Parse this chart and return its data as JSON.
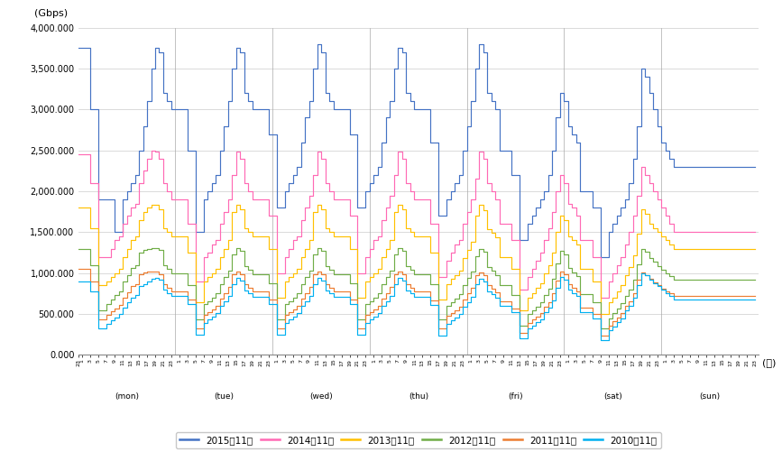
{
  "ylabel": "(Gbps)",
  "xlabel_right": "(時)",
  "ylim": [
    0,
    4000000
  ],
  "yticks": [
    0,
    500000,
    1000000,
    1500000,
    2000000,
    2500000,
    3000000,
    3500000,
    4000000
  ],
  "ytick_labels": [
    "0.000",
    "500.000",
    "1,000.000",
    "1,500.000",
    "2,000.000",
    "2,500.000",
    "3,000.000",
    "3,500.000",
    "4,000.000"
  ],
  "days_labels": [
    "(mon)",
    "(tue)",
    "(wed)",
    "(thu)",
    "(fri)",
    "(sat)",
    "(sun)"
  ],
  "series": [
    {
      "name": "2015年11月",
      "color": "#4472C4",
      "hourly": [
        3750,
        3750,
        3750,
        3000,
        3000,
        1900,
        1900,
        1900,
        1900,
        1500,
        1500,
        1900,
        2000,
        2100,
        2200,
        2500,
        2800,
        3100,
        3500,
        3750,
        3700,
        3200,
        3100,
        3000,
        3000,
        3000,
        3000,
        2500,
        2500,
        1500,
        1500,
        1900,
        2000,
        2100,
        2200,
        2500,
        2800,
        3100,
        3500,
        3750,
        3700,
        3200,
        3100,
        3000,
        3000,
        3000,
        3000,
        2700,
        2700,
        1800,
        1800,
        2000,
        2100,
        2200,
        2300,
        2600,
        2900,
        3100,
        3500,
        3800,
        3700,
        3200,
        3100,
        3000,
        3000,
        3000,
        3000,
        2700,
        2700,
        1800,
        1800,
        2000,
        2100,
        2200,
        2300,
        2600,
        2900,
        3100,
        3500,
        3750,
        3700,
        3200,
        3100,
        3000,
        3000,
        3000,
        3000,
        2600,
        2600,
        1700,
        1700,
        1900,
        2000,
        2100,
        2200,
        2500,
        2800,
        3100,
        3500,
        3800,
        3700,
        3200,
        3100,
        3000,
        2500,
        2500,
        2500,
        2200,
        2200,
        1400,
        1400,
        1600,
        1700,
        1800,
        1900,
        2000,
        2200,
        2500,
        2900,
        3200,
        3100,
        2800,
        2700,
        2600,
        2000,
        2000,
        2000,
        1800,
        1800,
        1200,
        1200,
        1500,
        1600,
        1700,
        1800,
        1900,
        2100,
        2400,
        2800,
        3500,
        3400,
        3200,
        3000,
        2800,
        2600,
        2500,
        2400,
        2300
      ]
    },
    {
      "name": "2014年11月",
      "color": "#FF69B4",
      "hourly": [
        2450,
        2450,
        2450,
        2100,
        2100,
        1200,
        1200,
        1200,
        1300,
        1400,
        1450,
        1600,
        1700,
        1800,
        1850,
        2100,
        2250,
        2400,
        2500,
        2490,
        2400,
        2100,
        2000,
        1900,
        1900,
        1900,
        1900,
        1600,
        1600,
        900,
        900,
        1200,
        1250,
        1350,
        1400,
        1600,
        1750,
        1900,
        2200,
        2490,
        2400,
        2100,
        2000,
        1900,
        1900,
        1900,
        1900,
        1700,
        1700,
        1000,
        1000,
        1200,
        1300,
        1400,
        1450,
        1650,
        1800,
        1950,
        2200,
        2490,
        2400,
        2100,
        2000,
        1900,
        1900,
        1900,
        1900,
        1700,
        1700,
        1000,
        1000,
        1200,
        1300,
        1400,
        1450,
        1650,
        1800,
        1950,
        2200,
        2490,
        2400,
        2100,
        2000,
        1900,
        1900,
        1900,
        1900,
        1600,
        1600,
        950,
        950,
        1150,
        1250,
        1350,
        1400,
        1600,
        1750,
        1900,
        2150,
        2490,
        2400,
        2100,
        2000,
        1900,
        1600,
        1600,
        1600,
        1400,
        1400,
        800,
        800,
        950,
        1050,
        1150,
        1250,
        1400,
        1550,
        1750,
        2000,
        2200,
        2100,
        1850,
        1800,
        1700,
        1400,
        1400,
        1400,
        1200,
        1200,
        700,
        700,
        900,
        1000,
        1100,
        1200,
        1350,
        1500,
        1700,
        1950,
        2300,
        2200,
        2100,
        2000,
        1900,
        1800,
        1700,
        1600,
        1500
      ]
    },
    {
      "name": "2013年11月",
      "color": "#FFC000",
      "hourly": [
        1800,
        1800,
        1800,
        1550,
        1550,
        850,
        850,
        900,
        950,
        1000,
        1050,
        1200,
        1300,
        1400,
        1450,
        1650,
        1750,
        1800,
        1840,
        1840,
        1780,
        1550,
        1500,
        1450,
        1450,
        1450,
        1450,
        1250,
        1250,
        650,
        650,
        900,
        950,
        1000,
        1050,
        1200,
        1300,
        1400,
        1750,
        1840,
        1780,
        1550,
        1500,
        1450,
        1450,
        1450,
        1450,
        1300,
        1300,
        700,
        700,
        900,
        950,
        1000,
        1050,
        1200,
        1300,
        1400,
        1750,
        1840,
        1780,
        1550,
        1500,
        1450,
        1450,
        1450,
        1450,
        1300,
        1300,
        700,
        700,
        900,
        950,
        1000,
        1050,
        1200,
        1300,
        1400,
        1750,
        1840,
        1780,
        1550,
        1500,
        1450,
        1450,
        1450,
        1450,
        1250,
        1250,
        680,
        680,
        870,
        930,
        980,
        1030,
        1180,
        1280,
        1380,
        1700,
        1830,
        1770,
        1540,
        1490,
        1440,
        1200,
        1200,
        1200,
        1050,
        1050,
        550,
        550,
        700,
        750,
        820,
        880,
        1000,
        1100,
        1250,
        1500,
        1700,
        1650,
        1450,
        1400,
        1350,
        1050,
        1050,
        1050,
        900,
        900,
        500,
        500,
        640,
        700,
        780,
        850,
        970,
        1070,
        1220,
        1480,
        1780,
        1720,
        1600,
        1550,
        1500,
        1450,
        1400,
        1350,
        1300
      ]
    },
    {
      "name": "2012年11月",
      "color": "#70AD47",
      "hourly": [
        1300,
        1300,
        1300,
        1100,
        1100,
        550,
        550,
        620,
        680,
        730,
        780,
        900,
        980,
        1060,
        1100,
        1250,
        1280,
        1300,
        1310,
        1310,
        1280,
        1100,
        1050,
        1000,
        1000,
        1000,
        1000,
        850,
        850,
        430,
        430,
        620,
        660,
        700,
        750,
        870,
        950,
        1030,
        1230,
        1310,
        1270,
        1090,
        1040,
        990,
        990,
        990,
        990,
        880,
        880,
        440,
        440,
        620,
        660,
        700,
        750,
        870,
        950,
        1030,
        1230,
        1310,
        1270,
        1090,
        1040,
        990,
        990,
        990,
        990,
        880,
        880,
        440,
        440,
        620,
        660,
        700,
        750,
        870,
        950,
        1030,
        1230,
        1310,
        1270,
        1090,
        1040,
        990,
        990,
        990,
        990,
        870,
        870,
        430,
        430,
        600,
        650,
        690,
        740,
        850,
        940,
        1020,
        1210,
        1300,
        1260,
        1080,
        1030,
        980,
        850,
        850,
        850,
        730,
        730,
        360,
        360,
        500,
        550,
        590,
        640,
        730,
        810,
        930,
        1120,
        1270,
        1230,
        1060,
        1010,
        960,
        740,
        740,
        740,
        640,
        640,
        320,
        320,
        450,
        510,
        570,
        630,
        720,
        800,
        920,
        1110,
        1300,
        1260,
        1190,
        1140,
        1090,
        1040,
        1000,
        960,
        920
      ]
    },
    {
      "name": "2011年11月",
      "color": "#ED7D31",
      "hourly": [
        1050,
        1050,
        1050,
        900,
        900,
        430,
        430,
        490,
        530,
        570,
        610,
        700,
        770,
        840,
        870,
        990,
        1010,
        1020,
        1020,
        1020,
        990,
        860,
        820,
        780,
        780,
        780,
        780,
        680,
        680,
        330,
        330,
        490,
        520,
        560,
        600,
        690,
        760,
        830,
        990,
        1020,
        990,
        860,
        820,
        780,
        780,
        780,
        780,
        680,
        680,
        330,
        330,
        490,
        520,
        560,
        600,
        690,
        760,
        830,
        990,
        1020,
        990,
        860,
        820,
        780,
        780,
        780,
        780,
        680,
        680,
        330,
        330,
        490,
        520,
        560,
        600,
        690,
        760,
        830,
        990,
        1020,
        990,
        860,
        820,
        780,
        780,
        780,
        780,
        670,
        670,
        320,
        320,
        480,
        510,
        550,
        590,
        680,
        750,
        820,
        980,
        1010,
        980,
        850,
        810,
        770,
        660,
        660,
        660,
        570,
        570,
        270,
        270,
        390,
        430,
        470,
        510,
        590,
        650,
        750,
        910,
        1020,
        990,
        860,
        820,
        780,
        580,
        580,
        580,
        500,
        500,
        240,
        240,
        360,
        410,
        460,
        510,
        600,
        660,
        760,
        920,
        1010,
        980,
        930,
        890,
        850,
        810,
        780,
        750,
        720
      ]
    },
    {
      "name": "2010年11月",
      "color": "#00B0F0",
      "hourly": [
        900,
        900,
        900,
        780,
        780,
        330,
        330,
        380,
        420,
        460,
        500,
        580,
        640,
        700,
        730,
        840,
        870,
        900,
        930,
        940,
        920,
        800,
        760,
        720,
        720,
        720,
        720,
        620,
        620,
        250,
        250,
        390,
        430,
        470,
        510,
        600,
        660,
        720,
        870,
        940,
        910,
        790,
        750,
        710,
        710,
        710,
        710,
        620,
        620,
        250,
        250,
        390,
        430,
        470,
        510,
        600,
        660,
        720,
        870,
        940,
        910,
        790,
        750,
        710,
        710,
        710,
        710,
        620,
        620,
        250,
        250,
        390,
        430,
        470,
        510,
        600,
        660,
        720,
        870,
        940,
        910,
        790,
        750,
        710,
        710,
        710,
        710,
        610,
        610,
        240,
        240,
        380,
        420,
        460,
        500,
        590,
        650,
        710,
        860,
        930,
        900,
        780,
        740,
        700,
        600,
        600,
        600,
        520,
        520,
        200,
        200,
        320,
        360,
        400,
        440,
        520,
        580,
        670,
        820,
        950,
        920,
        800,
        760,
        720,
        520,
        520,
        520,
        450,
        450,
        180,
        180,
        300,
        350,
        400,
        450,
        540,
        600,
        700,
        850,
        1000,
        970,
        920,
        880,
        840,
        800,
        760,
        720,
        680
      ]
    }
  ],
  "figsize": [
    8.67,
    5.11
  ],
  "dpi": 100
}
